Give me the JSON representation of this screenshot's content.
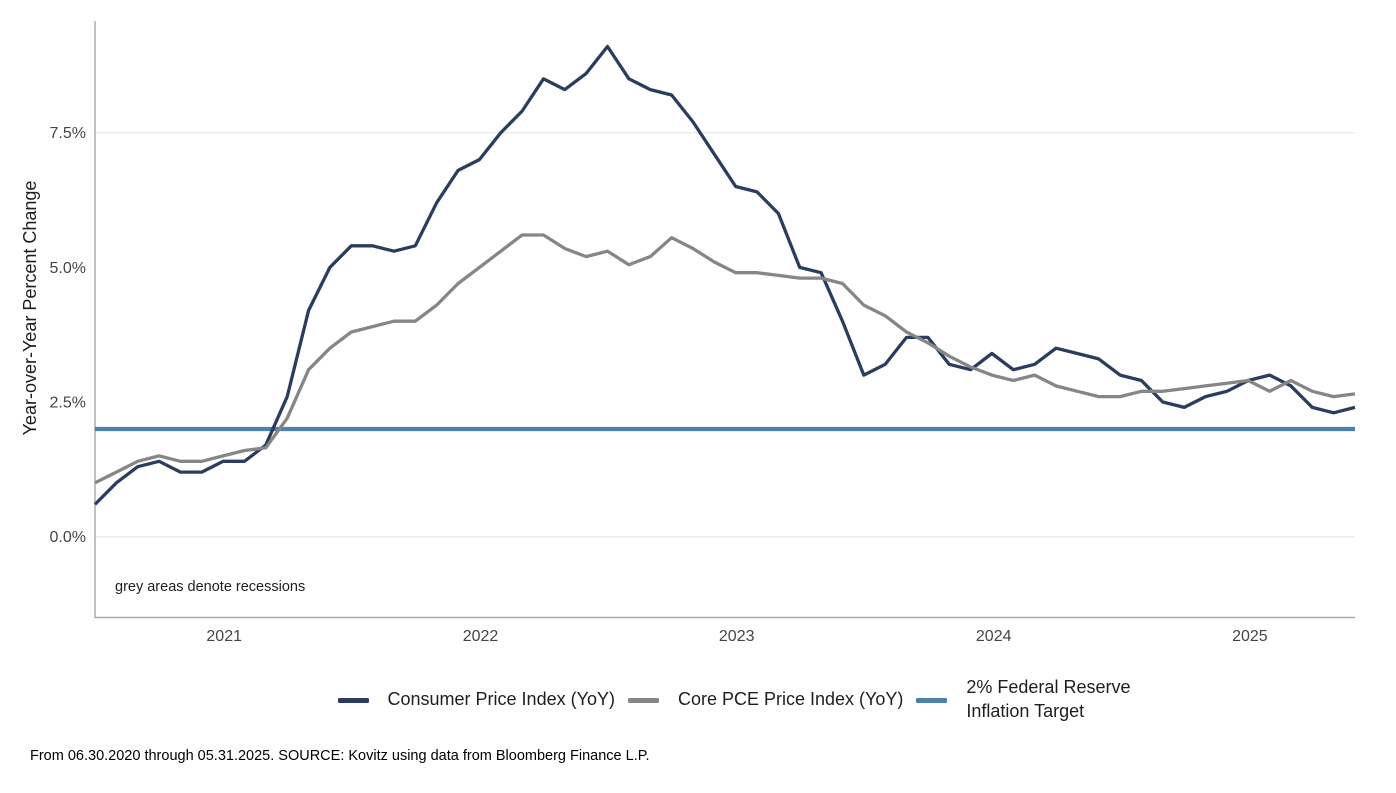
{
  "chart_data": {
    "type": "line",
    "title": "",
    "ylabel": "Year-over-Year Percent Change",
    "xlabel": "",
    "x_start": "06.30.2020",
    "x_end": "05.31.2025",
    "x_frequency": "monthly",
    "ylim": [
      -1.5,
      9.55
    ],
    "annotation": "grey areas denote recessions",
    "grid_y_values": [
      0,
      7.5
    ],
    "y_ticks": [
      {
        "value": 0,
        "label": "0.0%"
      },
      {
        "value": 2.5,
        "label": "2.5%"
      },
      {
        "value": 5,
        "label": "5.0%"
      },
      {
        "value": 7.5,
        "label": "7.5%"
      }
    ],
    "x_ticks": [
      {
        "label": "2021",
        "month_index": 6.05
      },
      {
        "label": "2022",
        "month_index": 18.05
      },
      {
        "label": "2023",
        "month_index": 30.05
      },
      {
        "label": "2024",
        "month_index": 42.08
      },
      {
        "label": "2025",
        "month_index": 54.08
      }
    ],
    "series": [
      {
        "id": "cpi",
        "name": "Consumer Price Index (YoY)",
        "color": "#2a3d5f",
        "values": [
          0.6,
          1.0,
          1.3,
          1.4,
          1.2,
          1.2,
          1.4,
          1.4,
          1.7,
          2.6,
          4.2,
          5.0,
          5.4,
          5.4,
          5.3,
          5.4,
          6.2,
          6.8,
          7.0,
          7.5,
          7.9,
          8.5,
          8.3,
          8.6,
          9.1,
          8.5,
          8.3,
          8.2,
          7.7,
          7.1,
          6.5,
          6.4,
          6.0,
          5.0,
          4.9,
          4.0,
          3.0,
          3.2,
          3.7,
          3.7,
          3.2,
          3.1,
          3.4,
          3.1,
          3.2,
          3.5,
          3.4,
          3.3,
          3.0,
          2.9,
          2.5,
          2.4,
          2.6,
          2.7,
          2.9,
          3.0,
          2.8,
          2.4,
          2.3,
          2.4
        ]
      },
      {
        "id": "core-pce",
        "name": "Core PCE Price Index (YoY)",
        "color": "#868686",
        "values": [
          1.0,
          1.2,
          1.4,
          1.5,
          1.4,
          1.4,
          1.5,
          1.6,
          1.65,
          2.2,
          3.1,
          3.5,
          3.8,
          3.9,
          4.0,
          4.0,
          4.3,
          4.7,
          5.0,
          5.3,
          5.6,
          5.6,
          5.35,
          5.2,
          5.3,
          5.05,
          5.2,
          5.55,
          5.35,
          5.1,
          4.9,
          4.9,
          4.85,
          4.8,
          4.8,
          4.7,
          4.3,
          4.1,
          3.8,
          3.6,
          3.35,
          3.15,
          3.0,
          2.9,
          3.0,
          2.8,
          2.7,
          2.6,
          2.6,
          2.7,
          2.7,
          2.75,
          2.8,
          2.85,
          2.9,
          2.7,
          2.9,
          2.7,
          2.6,
          2.65
        ]
      }
    ],
    "reference_line": {
      "value": 2,
      "color": "#4c81ae",
      "label_line1": "2% Federal Reserve",
      "label_line2": "Inflation Target"
    },
    "legend_position": "bottom",
    "style": {
      "grid_color": "#e7e7e7",
      "axis_color": "#a9a9a9",
      "tick_label_color": "#454545"
    }
  },
  "footer": {
    "source_text": "From 06.30.2020 through 05.31.2025. SOURCE: Kovitz using data from Bloomberg Finance L.P."
  }
}
